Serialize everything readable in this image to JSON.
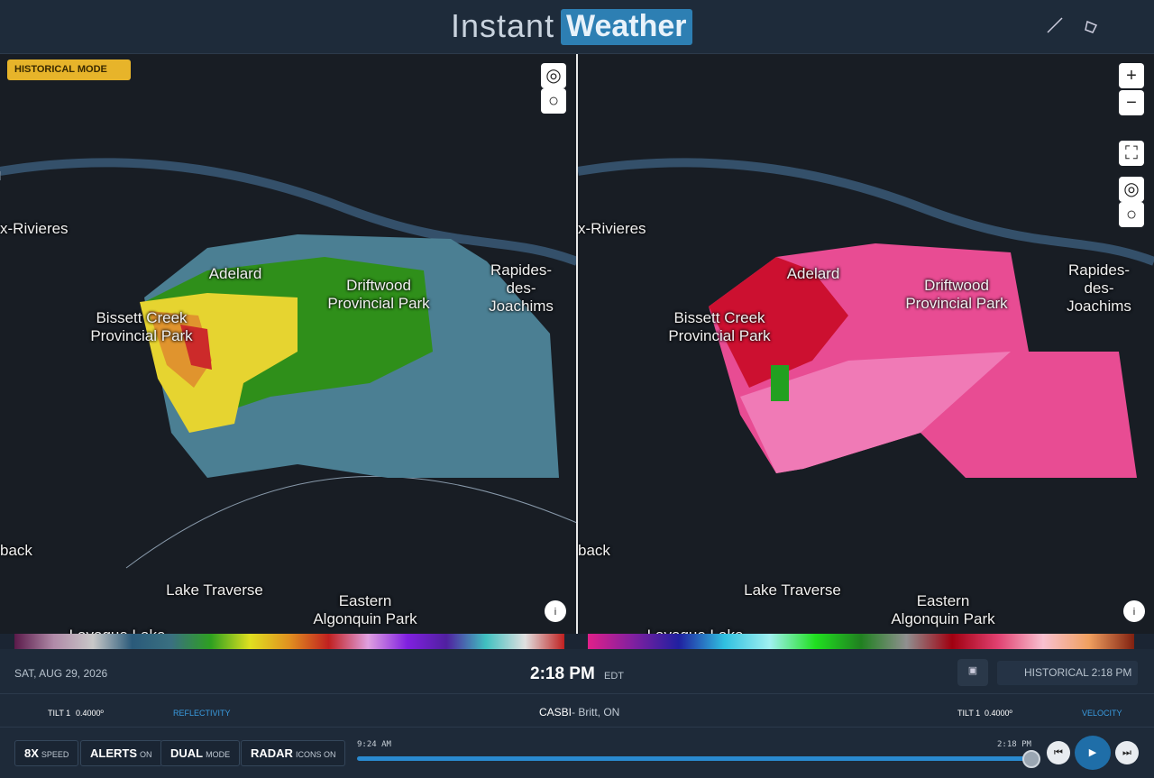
{
  "header": {
    "brand_left": "Instant",
    "brand_right": "Weather"
  },
  "badge": "HISTORICAL MODE",
  "map": {
    "labels": [
      "x-Rivieres",
      "Adelard",
      "Driftwood\nProvincial Park",
      "Rapides-des-\nJoachims",
      "Bissett Creek\nProvincial Park",
      "back",
      "Lake Traverse",
      "Eastern\nAlgonquin Park",
      "Lavaque Lake"
    ]
  },
  "status": {
    "date": "SAT, AUG 29, 2026",
    "time": "2:18 PM",
    "timezone": "EDT",
    "historical": "HISTORICAL 2:18 PM"
  },
  "radar_row": {
    "left_tilt": "TILT 1",
    "left_angle": "0.4000º",
    "left_product": "REFLECTIVITY",
    "station": "CASBI",
    "station_place": "- Britt, ON",
    "right_tilt": "TILT 1",
    "right_angle": "0.4000º",
    "right_product": "VELOCITY"
  },
  "controls": [
    {
      "label": "8X",
      "sub": "SPEED"
    },
    {
      "label": "ALERTS",
      "sub": "ON"
    },
    {
      "label": "DUAL",
      "sub": "MODE"
    },
    {
      "label": "RADAR",
      "sub": "ICONS ON"
    }
  ],
  "timeline": {
    "start": "9:24 AM",
    "end": "2:18 PM"
  }
}
